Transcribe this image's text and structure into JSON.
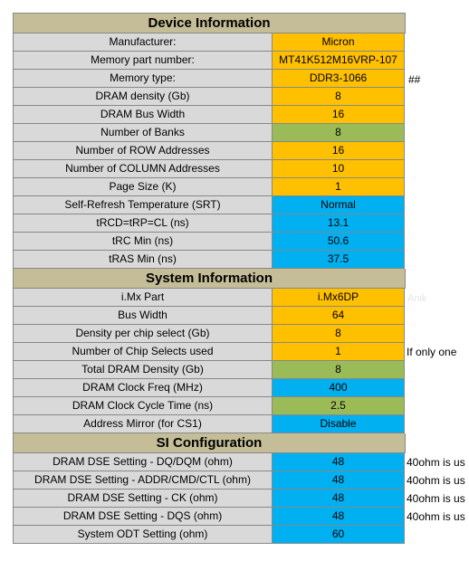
{
  "sections": [
    {
      "title": "Device Information",
      "rows": [
        {
          "label": "Manufacturer:",
          "value": "Micron",
          "color": "#ffc000"
        },
        {
          "label": "Memory part number:",
          "value": "MT41K512M16VRP-107",
          "color": "#ffc000"
        },
        {
          "label": "Memory type:",
          "value": "DDR3-1066",
          "color": "#ffc000"
        },
        {
          "label": "DRAM density (Gb)",
          "value": "8",
          "color": "#ffc000"
        },
        {
          "label": "DRAM Bus Width",
          "value": "16",
          "color": "#ffc000"
        },
        {
          "label": "Number of Banks",
          "value": "8",
          "color": "#9bbb59"
        },
        {
          "label": "Number of ROW Addresses",
          "value": "16",
          "color": "#ffc000"
        },
        {
          "label": "Number of COLUMN Addresses",
          "value": "10",
          "color": "#ffc000"
        },
        {
          "label": "Page Size (K)",
          "value": "1",
          "color": "#ffc000"
        },
        {
          "label": "Self-Refresh Temperature (SRT)",
          "value": "Normal",
          "color": "#00b0f0"
        },
        {
          "label": "tRCD=tRP=CL (ns)",
          "value": "13.1",
          "color": "#00b0f0"
        },
        {
          "label": "tRC Min (ns)",
          "value": "50.6",
          "color": "#00b0f0"
        },
        {
          "label": "tRAS Min (ns)",
          "value": "37.5",
          "color": "#00b0f0"
        }
      ]
    },
    {
      "title": "System Information",
      "rows": [
        {
          "label": "i.Mx Part",
          "value": "i.Mx6DP",
          "color": "#ffc000"
        },
        {
          "label": "Bus Width",
          "value": "64",
          "color": "#ffc000"
        },
        {
          "label": "Density per chip select (Gb)",
          "value": "8",
          "color": "#ffc000"
        },
        {
          "label": "Number of Chip Selects used",
          "value": "1",
          "color": "#ffc000"
        },
        {
          "label": "Total DRAM Density (Gb)",
          "value": "8",
          "color": "#9bbb59"
        },
        {
          "label": "DRAM Clock Freq (MHz)",
          "value": "400",
          "color": "#00b0f0"
        },
        {
          "label": "DRAM Clock Cycle Time (ns)",
          "value": "2.5",
          "color": "#9bbb59"
        },
        {
          "label": "Address Mirror (for CS1)",
          "value": "Disable",
          "color": "#00b0f0"
        }
      ]
    },
    {
      "title": "SI Configuration",
      "rows": [
        {
          "label": "DRAM DSE Setting - DQ/DQM (ohm)",
          "value": "48",
          "color": "#00b0f0"
        },
        {
          "label": "DRAM DSE Setting - ADDR/CMD/CTL (ohm)",
          "value": "48",
          "color": "#00b0f0"
        },
        {
          "label": "DRAM DSE Setting - CK (ohm)",
          "value": "48",
          "color": "#00b0f0"
        },
        {
          "label": "DRAM DSE Setting - DQS (ohm)",
          "value": "48",
          "color": "#00b0f0"
        },
        {
          "label": "System ODT Setting (ohm)",
          "value": "60",
          "color": "#00b0f0"
        }
      ]
    }
  ],
  "side_notes": {
    "memory_type_flag": "##",
    "chip_select_note": "If only one",
    "dse_note_1": "40ohm is us",
    "dse_note_2": "40ohm is us",
    "dse_note_3": "40ohm is us",
    "dse_note_4": "40ohm is us",
    "ghost_text": "Anik"
  }
}
